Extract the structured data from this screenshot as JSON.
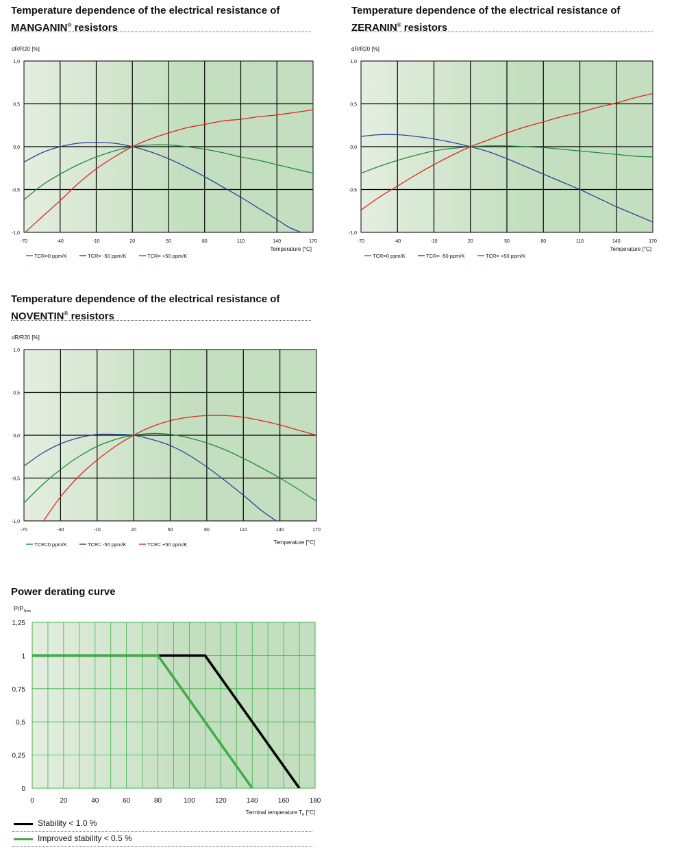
{
  "panels": [
    {
      "id": "manganin",
      "title_line1": "Temperature dependence of the electrical resistance of",
      "title_material": "MANGANIN",
      "title_reg": "®",
      "title_suffix": " resistors"
    },
    {
      "id": "zeranin",
      "title_line1": "Temperature dependence of the electrical resistance of",
      "title_material": "ZERANIN",
      "title_reg": "®",
      "title_suffix": " resistors"
    },
    {
      "id": "noventin",
      "title_line1": "Temperature dependence of the electrical resistance of",
      "title_material": "NOVENTIN",
      "title_reg": "®",
      "title_suffix": " resistors"
    },
    {
      "id": "derating",
      "title_line1": "Power derating curve"
    }
  ],
  "colors": {
    "green": "#1e8a3a",
    "blue": "#2a3fa0",
    "red": "#e0241b",
    "black": "#000000",
    "light_green": "#3fae45",
    "bg_left": "#e4eee0",
    "bg_right": "#c4dfc0",
    "grid": "#000000",
    "grid_derating": "#3cb04a"
  },
  "chart_data": [
    {
      "type": "line",
      "id": "manganin",
      "ylabel": "dR/R20 [%]",
      "xlabel": "Temperature [°C]",
      "xlim": [
        -70,
        170
      ],
      "ylim": [
        -1.0,
        1.0
      ],
      "xticks": [
        -70,
        -40,
        -10,
        20,
        50,
        80,
        110,
        140,
        170
      ],
      "xtick_labels": [
        "-70",
        "-40",
        "-10",
        "20",
        "50",
        "80",
        "110",
        "140",
        "170"
      ],
      "yticks": [
        -1.0,
        -0.5,
        0.0,
        0.5,
        1.0
      ],
      "ytick_labels": [
        "-1,0",
        "-0,5",
        "0,0",
        "0,5",
        "1,0"
      ],
      "grid": true,
      "legend_position": "bottom-left",
      "series": [
        {
          "name": "TCR=0 ppm/K",
          "color": "green",
          "x": [
            -70,
            -55,
            -40,
            -25,
            -10,
            5,
            20,
            35,
            50,
            65,
            80,
            95,
            110,
            125,
            140,
            155,
            170
          ],
          "y": [
            -0.62,
            -0.45,
            -0.32,
            -0.21,
            -0.12,
            -0.05,
            0.0,
            0.02,
            0.02,
            0.0,
            -0.03,
            -0.07,
            -0.12,
            -0.16,
            -0.21,
            -0.26,
            -0.31
          ]
        },
        {
          "name": "TCR= -50 ppm/K",
          "color": "blue",
          "x": [
            -70,
            -55,
            -40,
            -25,
            -10,
            5,
            20,
            35,
            50,
            65,
            80,
            95,
            110,
            125,
            140,
            150,
            160
          ],
          "y": [
            -0.18,
            -0.07,
            0.0,
            0.04,
            0.05,
            0.04,
            0.0,
            -0.06,
            -0.14,
            -0.24,
            -0.35,
            -0.47,
            -0.59,
            -0.72,
            -0.85,
            -0.94,
            -1.0
          ]
        },
        {
          "name": "TCR= +50 ppm/K",
          "color": "red",
          "x": [
            -69,
            -55,
            -40,
            -25,
            -10,
            5,
            20,
            35,
            50,
            65,
            80,
            95,
            110,
            125,
            140,
            155,
            170
          ],
          "y": [
            -1.0,
            -0.82,
            -0.63,
            -0.43,
            -0.26,
            -0.12,
            0.0,
            0.09,
            0.16,
            0.22,
            0.26,
            0.3,
            0.32,
            0.35,
            0.37,
            0.4,
            0.43
          ]
        }
      ]
    },
    {
      "type": "line",
      "id": "zeranin",
      "ylabel": "dR/R20 [%]",
      "xlabel": "Temperature [°C]",
      "xlim": [
        -70,
        170
      ],
      "ylim": [
        -1.0,
        1.0
      ],
      "xticks": [
        -70,
        -40,
        -10,
        20,
        50,
        80,
        110,
        140,
        170
      ],
      "xtick_labels": [
        "-70",
        "-40",
        "-10",
        "20",
        "50",
        "80",
        "110",
        "140",
        "170"
      ],
      "yticks": [
        -1.0,
        -0.5,
        0.0,
        0.5,
        1.0
      ],
      "ytick_labels": [
        "-1,0",
        "-0,5",
        "0,0",
        "0,5",
        "1,0"
      ],
      "grid": true,
      "legend_position": "bottom-left",
      "series": [
        {
          "name": "TCR=0 ppm/K",
          "color": "green",
          "x": [
            -70,
            -55,
            -40,
            -25,
            -10,
            5,
            20,
            35,
            50,
            65,
            80,
            95,
            110,
            125,
            140,
            155,
            170
          ],
          "y": [
            -0.31,
            -0.23,
            -0.16,
            -0.1,
            -0.05,
            -0.02,
            0.0,
            0.01,
            0.01,
            0.0,
            -0.01,
            -0.03,
            -0.05,
            -0.07,
            -0.09,
            -0.11,
            -0.12
          ]
        },
        {
          "name": "TCR= -50 ppm/K",
          "color": "blue",
          "x": [
            -70,
            -55,
            -40,
            -25,
            -10,
            5,
            20,
            35,
            50,
            65,
            80,
            95,
            110,
            125,
            140,
            155,
            170
          ],
          "y": [
            0.12,
            0.14,
            0.14,
            0.12,
            0.09,
            0.05,
            0.0,
            -0.06,
            -0.14,
            -0.23,
            -0.32,
            -0.41,
            -0.5,
            -0.6,
            -0.7,
            -0.79,
            -0.88
          ]
        },
        {
          "name": "TCR= +50 ppm/K",
          "color": "red",
          "x": [
            -70,
            -55,
            -40,
            -25,
            -10,
            5,
            20,
            35,
            50,
            65,
            80,
            95,
            110,
            125,
            140,
            155,
            170
          ],
          "y": [
            -0.74,
            -0.59,
            -0.46,
            -0.33,
            -0.21,
            -0.1,
            0.0,
            0.08,
            0.16,
            0.23,
            0.29,
            0.35,
            0.4,
            0.46,
            0.51,
            0.57,
            0.62
          ]
        }
      ]
    },
    {
      "type": "line",
      "id": "noventin",
      "ylabel": "dR/R20 [%]",
      "xlabel": "Temperature [°C]",
      "xlim": [
        -70,
        170
      ],
      "ylim": [
        -1.0,
        1.0
      ],
      "xticks": [
        -70,
        -40,
        -10,
        20,
        50,
        80,
        110,
        140,
        170
      ],
      "xtick_labels": [
        "-70",
        "-40",
        "-10",
        "20",
        "50",
        "80",
        "110",
        "140",
        "170"
      ],
      "yticks": [
        -1.0,
        -0.5,
        0.0,
        0.5,
        1.0
      ],
      "ytick_labels": [
        "-1,0",
        "-0,5",
        "0,0",
        "0,5",
        "1,0"
      ],
      "grid": true,
      "legend_position": "bottom-left",
      "series": [
        {
          "name": "TCR=0 ppm/K",
          "color": "green",
          "x": [
            -70,
            -55,
            -40,
            -25,
            -10,
            5,
            20,
            35,
            50,
            65,
            80,
            95,
            110,
            125,
            140,
            155,
            170
          ],
          "y": [
            -0.79,
            -0.58,
            -0.4,
            -0.25,
            -0.13,
            -0.05,
            0.0,
            0.02,
            0.01,
            -0.03,
            -0.09,
            -0.17,
            -0.27,
            -0.38,
            -0.5,
            -0.63,
            -0.77
          ]
        },
        {
          "name": "TCR= -50 ppm/K",
          "color": "blue",
          "x": [
            -70,
            -55,
            -40,
            -25,
            -10,
            5,
            20,
            35,
            50,
            65,
            80,
            95,
            110,
            125,
            137
          ],
          "y": [
            -0.36,
            -0.21,
            -0.1,
            -0.03,
            0.01,
            0.01,
            0.0,
            -0.05,
            -0.12,
            -0.23,
            -0.37,
            -0.53,
            -0.7,
            -0.88,
            -1.0
          ]
        },
        {
          "name": "TCR= +50 ppm/K",
          "color": "red",
          "x": [
            -54,
            -40,
            -25,
            -10,
            5,
            20,
            35,
            50,
            65,
            80,
            95,
            110,
            125,
            140,
            155,
            170
          ],
          "y": [
            -1.0,
            -0.72,
            -0.48,
            -0.29,
            -0.13,
            0.0,
            0.1,
            0.17,
            0.21,
            0.23,
            0.23,
            0.21,
            0.17,
            0.12,
            0.06,
            0.0
          ]
        }
      ]
    },
    {
      "type": "line",
      "id": "derating",
      "ylabel": "P/P",
      "ylabel_sub": "Nom",
      "xlabel": "Terminal temperature T",
      "xlabel_sub": "K",
      "xlabel_unit": " [°C]",
      "xlim": [
        0,
        180
      ],
      "ylim": [
        0,
        1.25
      ],
      "xticks": [
        0,
        20,
        40,
        60,
        80,
        100,
        120,
        140,
        160,
        180
      ],
      "xtick_labels": [
        "0",
        "20",
        "40",
        "60",
        "80",
        "100",
        "120",
        "140",
        "160",
        "180"
      ],
      "yticks": [
        0,
        0.25,
        0.5,
        0.75,
        1.0,
        1.25
      ],
      "ytick_labels": [
        "0",
        "0,25",
        "0,5",
        "0,75",
        "1",
        "1,25"
      ],
      "grid": true,
      "legend_position": "below",
      "series": [
        {
          "name": "Stability < 1.0 %",
          "color": "black",
          "x": [
            0,
            110,
            170
          ],
          "y": [
            1.0,
            1.0,
            0.0
          ]
        },
        {
          "name": "Improved stability < 0.5 %",
          "color": "light_green",
          "x": [
            0,
            80,
            140
          ],
          "y": [
            1.0,
            1.0,
            0.0
          ]
        }
      ]
    }
  ]
}
